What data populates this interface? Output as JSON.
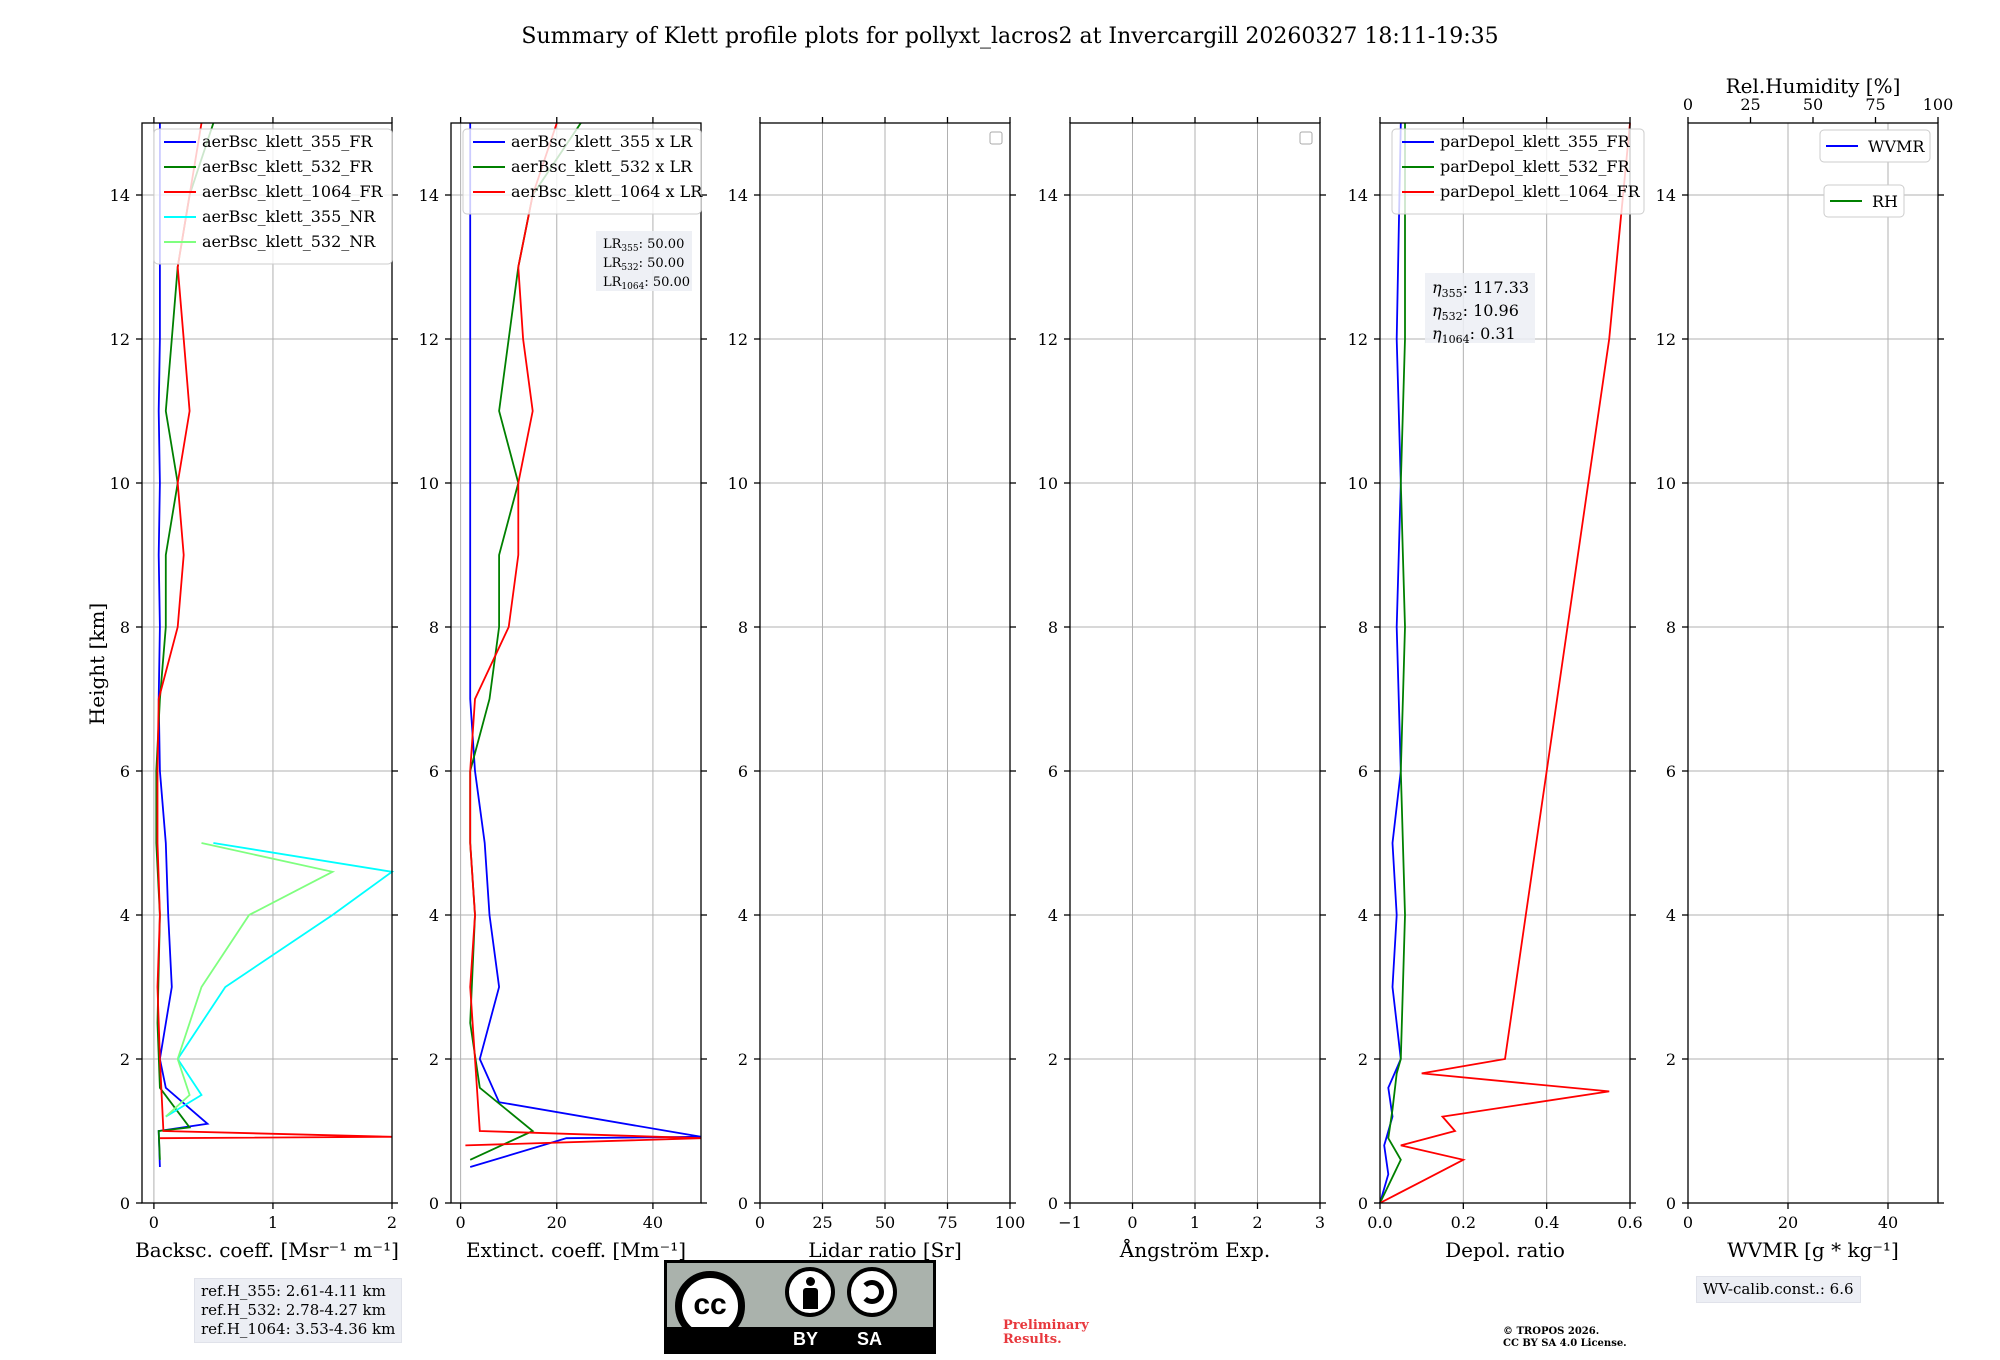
{
  "title": "Summary of Klett profile plots for pollyxt_lacros2 at Invercargill 20260327 18:11-19:35",
  "colors": {
    "c355": "#0000ff",
    "c532": "#008000",
    "c1064": "#ff0000",
    "c355nr": "#00ffff",
    "c532nr": "#7fff7f"
  },
  "chart_data": [
    {
      "type": "line",
      "name": "backscatter",
      "xlabel": "Backsc. coeff. [Msr⁻¹ m⁻¹]",
      "ylabel": "Height [km]",
      "xlim": [
        -0.1,
        2
      ],
      "ylim": [
        0,
        15
      ],
      "xticks": [
        0,
        1,
        2
      ],
      "xtick_labels": [
        "0",
        "1",
        "2"
      ],
      "yticks": [
        0,
        2,
        4,
        6,
        8,
        10,
        12,
        14
      ],
      "legend": [
        "aerBsc_klett_355_FR",
        "aerBsc_klett_532_FR",
        "aerBsc_klett_1064_FR",
        "aerBsc_klett_355_NR",
        "aerBsc_klett_532_NR"
      ],
      "series": [
        {
          "name": "aerBsc_klett_355_FR",
          "color": "c355",
          "values": [
            [
              0.05,
              0.5
            ],
            [
              0.04,
              1.0
            ],
            [
              0.45,
              1.1
            ],
            [
              0.1,
              1.6
            ],
            [
              0.05,
              2.0
            ],
            [
              0.15,
              3.0
            ],
            [
              0.12,
              4.0
            ],
            [
              0.1,
              5.0
            ],
            [
              0.05,
              6.0
            ],
            [
              0.04,
              7.0
            ],
            [
              0.05,
              8.0
            ],
            [
              0.04,
              9.0
            ],
            [
              0.05,
              10.0
            ],
            [
              0.04,
              11.0
            ],
            [
              0.05,
              12.0
            ],
            [
              0.05,
              13.0
            ],
            [
              0.05,
              14.0
            ],
            [
              0.05,
              15.0
            ]
          ]
        },
        {
          "name": "aerBsc_klett_532_FR",
          "color": "c532",
          "values": [
            [
              0.05,
              0.6
            ],
            [
              0.04,
              1.0
            ],
            [
              0.3,
              1.05
            ],
            [
              0.05,
              1.6
            ],
            [
              0.03,
              2.5
            ],
            [
              0.05,
              4.0
            ],
            [
              0.02,
              5.0
            ],
            [
              0.02,
              6.0
            ],
            [
              0.05,
              7.0
            ],
            [
              0.1,
              8.0
            ],
            [
              0.1,
              9.0
            ],
            [
              0.2,
              10.0
            ],
            [
              0.1,
              11.0
            ],
            [
              0.15,
              12.0
            ],
            [
              0.2,
              13.0
            ],
            [
              0.3,
              14.0
            ],
            [
              0.5,
              15.0
            ]
          ]
        },
        {
          "name": "aerBsc_klett_1064_FR",
          "color": "c1064",
          "values": [
            [
              0.05,
              0.9
            ],
            [
              2.0,
              0.92
            ],
            [
              0.08,
              1.0
            ],
            [
              0.05,
              2.0
            ],
            [
              0.03,
              3.0
            ],
            [
              0.05,
              4.0
            ],
            [
              0.03,
              5.0
            ],
            [
              0.03,
              6.0
            ],
            [
              0.04,
              7.0
            ],
            [
              0.2,
              8.0
            ],
            [
              0.25,
              9.0
            ],
            [
              0.2,
              10.0
            ],
            [
              0.3,
              11.0
            ],
            [
              0.25,
              12.0
            ],
            [
              0.2,
              13.0
            ],
            [
              0.3,
              14.0
            ],
            [
              0.4,
              15.0
            ]
          ]
        },
        {
          "name": "aerBsc_klett_355_NR",
          "color": "c355nr",
          "values": [
            [
              0.1,
              1.2
            ],
            [
              0.4,
              1.5
            ],
            [
              0.2,
              2.0
            ],
            [
              0.6,
              3.0
            ],
            [
              1.5,
              4.0
            ],
            [
              2.0,
              4.6
            ],
            [
              0.5,
              5.0
            ]
          ]
        },
        {
          "name": "aerBsc_klett_532_NR",
          "color": "c532nr",
          "values": [
            [
              0.1,
              1.2
            ],
            [
              0.3,
              1.5
            ],
            [
              0.2,
              2.0
            ],
            [
              0.4,
              3.0
            ],
            [
              0.8,
              4.0
            ],
            [
              1.5,
              4.6
            ],
            [
              0.4,
              5.0
            ]
          ]
        }
      ],
      "info_box": [
        "ref.H_355: 2.61-4.11 km",
        "ref.H_532: 2.78-4.27 km",
        "ref.H_1064: 3.53-4.36 km"
      ]
    },
    {
      "type": "line",
      "name": "extinction",
      "xlabel": "Extinct. coeff. [Mm⁻¹]",
      "xlim": [
        -2,
        50
      ],
      "ylim": [
        0,
        15
      ],
      "xticks": [
        0,
        20,
        40
      ],
      "xtick_labels": [
        "0",
        "20",
        "40"
      ],
      "yticks": [
        0,
        2,
        4,
        6,
        8,
        10,
        12,
        14
      ],
      "legend": [
        "aerBsc_klett_355 x LR",
        "aerBsc_klett_532 x LR",
        "aerBsc_klett_1064 x LR"
      ],
      "series": [
        {
          "name": "aerBsc_klett_355 x LR",
          "color": "c355",
          "values": [
            [
              2,
              0.5
            ],
            [
              22,
              0.9
            ],
            [
              50,
              0.92
            ],
            [
              8,
              1.4
            ],
            [
              4,
              2.0
            ],
            [
              8,
              3.0
            ],
            [
              6,
              4.0
            ],
            [
              5,
              5.0
            ],
            [
              3,
              6.0
            ],
            [
              2,
              7.0
            ],
            [
              2,
              8.0
            ],
            [
              2,
              9.0
            ],
            [
              2,
              10.0
            ],
            [
              2,
              11.0
            ],
            [
              2,
              12.0
            ],
            [
              2,
              13.0
            ],
            [
              2,
              14.0
            ],
            [
              2,
              15.0
            ]
          ]
        },
        {
          "name": "aerBsc_klett_532 x LR",
          "color": "c532",
          "values": [
            [
              2,
              0.6
            ],
            [
              15,
              1.0
            ],
            [
              4,
              1.6
            ],
            [
              2,
              2.5
            ],
            [
              3,
              4.0
            ],
            [
              2,
              5.0
            ],
            [
              2,
              6.0
            ],
            [
              6,
              7.0
            ],
            [
              8,
              8.0
            ],
            [
              8,
              9.0
            ],
            [
              12,
              10.0
            ],
            [
              8,
              11.0
            ],
            [
              10,
              12.0
            ],
            [
              12,
              13.0
            ],
            [
              15,
              14.0
            ],
            [
              25,
              15.0
            ]
          ]
        },
        {
          "name": "aerBsc_klett_1064 x LR",
          "color": "c1064",
          "values": [
            [
              1,
              0.8
            ],
            [
              50,
              0.9
            ],
            [
              4,
              1.0
            ],
            [
              3,
              2.0
            ],
            [
              2,
              3.0
            ],
            [
              3,
              4.0
            ],
            [
              2,
              5.0
            ],
            [
              2,
              6.0
            ],
            [
              3,
              7.0
            ],
            [
              10,
              8.0
            ],
            [
              12,
              9.0
            ],
            [
              12,
              10.0
            ],
            [
              15,
              11.0
            ],
            [
              13,
              12.0
            ],
            [
              12,
              13.0
            ],
            [
              15,
              14.0
            ],
            [
              20,
              15.0
            ]
          ]
        }
      ],
      "lr_box": [
        [
          "355",
          ": 50.00"
        ],
        [
          "532",
          ": 50.00"
        ],
        [
          "1064",
          ": 50.00"
        ]
      ]
    },
    {
      "type": "line",
      "name": "lidar_ratio",
      "xlabel": "Lidar ratio [Sr]",
      "xlim": [
        0,
        100
      ],
      "ylim": [
        0,
        15
      ],
      "xticks": [
        0,
        25,
        50,
        75,
        100
      ],
      "xtick_labels": [
        "0",
        "25",
        "50",
        "75",
        "100"
      ],
      "yticks": [
        0,
        2,
        4,
        6,
        8,
        10,
        12,
        14
      ],
      "legend": [],
      "series": []
    },
    {
      "type": "line",
      "name": "angstrom",
      "xlabel": "Ångström Exp.",
      "xlim": [
        -1,
        3
      ],
      "ylim": [
        0,
        15
      ],
      "xticks": [
        -1,
        0,
        1,
        2,
        3
      ],
      "xtick_labels": [
        "−1",
        "0",
        "1",
        "2",
        "3"
      ],
      "yticks": [
        0,
        2,
        4,
        6,
        8,
        10,
        12,
        14
      ],
      "legend": [],
      "series": []
    },
    {
      "type": "line",
      "name": "depol",
      "xlabel": "Depol. ratio",
      "xlim": [
        0,
        0.6
      ],
      "ylim": [
        0,
        15
      ],
      "xticks": [
        0,
        0.2,
        0.4,
        0.6
      ],
      "xtick_labels": [
        "0.0",
        "0.2",
        "0.4",
        "0.6"
      ],
      "yticks": [
        0,
        2,
        4,
        6,
        8,
        10,
        12,
        14
      ],
      "legend": [
        "parDepol_klett_355_FR",
        "parDepol_klett_532_FR",
        "parDepol_klett_1064_FR"
      ],
      "series": [
        {
          "name": "parDepol_klett_355_FR",
          "color": "c355",
          "values": [
            [
              0.0,
              0.0
            ],
            [
              0.02,
              0.4
            ],
            [
              0.01,
              0.8
            ],
            [
              0.03,
              1.2
            ],
            [
              0.02,
              1.6
            ],
            [
              0.05,
              2.0
            ],
            [
              0.03,
              3.0
            ],
            [
              0.04,
              4.0
            ],
            [
              0.03,
              5.0
            ],
            [
              0.05,
              6.0
            ],
            [
              0.04,
              8.0
            ],
            [
              0.05,
              10.0
            ],
            [
              0.04,
              12.0
            ],
            [
              0.05,
              15.0
            ]
          ]
        },
        {
          "name": "parDepol_klett_532_FR",
          "color": "c532",
          "values": [
            [
              0.0,
              0.0
            ],
            [
              0.05,
              0.6
            ],
            [
              0.02,
              0.9
            ],
            [
              0.03,
              1.3
            ],
            [
              0.04,
              1.8
            ],
            [
              0.05,
              2.0
            ],
            [
              0.06,
              4.0
            ],
            [
              0.05,
              6.0
            ],
            [
              0.06,
              8.0
            ],
            [
              0.05,
              10.0
            ],
            [
              0.06,
              12.0
            ],
            [
              0.06,
              15.0
            ]
          ]
        },
        {
          "name": "parDepol_klett_1064_FR",
          "color": "c1064",
          "values": [
            [
              0.0,
              0.0
            ],
            [
              0.1,
              0.3
            ],
            [
              0.2,
              0.6
            ],
            [
              0.05,
              0.8
            ],
            [
              0.18,
              1.0
            ],
            [
              0.15,
              1.2
            ],
            [
              0.55,
              1.55
            ],
            [
              0.1,
              1.8
            ],
            [
              0.3,
              2.0
            ],
            [
              0.35,
              4.0
            ],
            [
              0.4,
              6.0
            ],
            [
              0.45,
              8.0
            ],
            [
              0.5,
              10.0
            ],
            [
              0.55,
              12.0
            ],
            [
              0.6,
              15.0
            ]
          ]
        }
      ],
      "eta_box": [
        [
          "355",
          ": 117.33"
        ],
        [
          "532",
          ": 10.96"
        ],
        [
          "1064",
          ": 0.31"
        ]
      ]
    },
    {
      "type": "line",
      "name": "wvmr",
      "xlabel": "WVMR [g * kg⁻¹]",
      "top_xlabel": "Rel.Humidity [%]",
      "xlim": [
        0,
        50
      ],
      "top_xlim": [
        0,
        100
      ],
      "ylim": [
        0,
        15
      ],
      "xticks": [
        0,
        20,
        40
      ],
      "xtick_labels": [
        "0",
        "20",
        "40"
      ],
      "top_xticks": [
        0,
        25,
        50,
        75,
        100
      ],
      "top_xtick_labels": [
        "0",
        "25",
        "50",
        "75",
        "100"
      ],
      "yticks": [
        0,
        2,
        4,
        6,
        8,
        10,
        12,
        14
      ],
      "legend": [
        "WVMR",
        "RH"
      ],
      "series": [],
      "info_box": [
        "WV-calib.const.: 6.6"
      ]
    }
  ],
  "footer": {
    "cc_label": "cc",
    "by_label": "BY",
    "sa_label": "SA",
    "preliminary": [
      "Preliminary",
      "Results."
    ],
    "copyright": [
      "© TROPOS 2026.",
      "CC BY SA 4.0 License."
    ]
  }
}
